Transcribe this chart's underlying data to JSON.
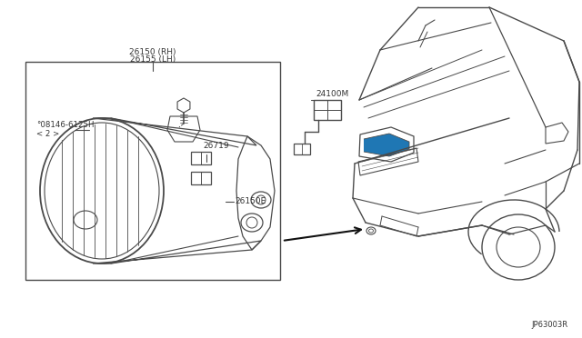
{
  "bg_color": "#ffffff",
  "line_color": "#4a4a4a",
  "text_color": "#333333",
  "diagram_id": "JP63003R",
  "figsize": [
    6.4,
    3.72
  ],
  "dpi": 100,
  "labels": {
    "26150_RH": "26150 (RH)",
    "26155_LH": "26155 (LH)",
    "08146": "°08146-6125H",
    "08146b": "< 2 >",
    "26719": "26719",
    "26150E": "26150E",
    "24100M": "24100M"
  }
}
